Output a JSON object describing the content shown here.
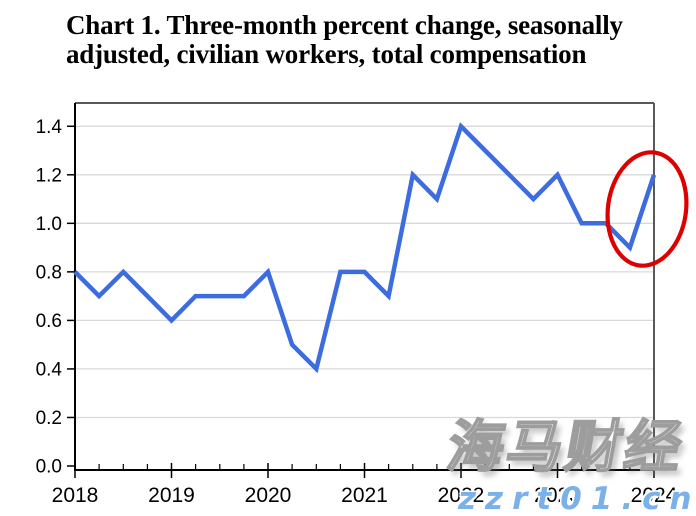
{
  "title": {
    "line1": "Chart 1. Three-month percent change, seasonally",
    "line2": "adjusted, civilian workers, total compensation"
  },
  "watermark": {
    "brand": "海马财经",
    "url": "zzrt01.cn",
    "url_color": "#7ab1e9"
  },
  "chart_data": {
    "type": "line",
    "title": "Chart 1. Three-month percent change, seasonally adjusted, civilian workers, total compensation",
    "xlabel": "",
    "ylabel": "",
    "categories": [
      "2018 Q1",
      "2018 Q2",
      "2018 Q3",
      "2018 Q4",
      "2019 Q1",
      "2019 Q2",
      "2019 Q3",
      "2019 Q4",
      "2020 Q1",
      "2020 Q2",
      "2020 Q3",
      "2020 Q4",
      "2021 Q1",
      "2021 Q2",
      "2021 Q3",
      "2021 Q4",
      "2022 Q1",
      "2022 Q2",
      "2022 Q3",
      "2022 Q4",
      "2023 Q1",
      "2023 Q2",
      "2023 Q3",
      "2023 Q4",
      "2024 Q1"
    ],
    "series": [
      {
        "name": "Total compensation, three-month percent change",
        "values": [
          0.8,
          0.7,
          0.8,
          0.7,
          0.6,
          0.7,
          0.7,
          0.7,
          0.8,
          0.5,
          0.4,
          0.8,
          0.8,
          0.7,
          1.2,
          1.1,
          1.4,
          1.3,
          1.2,
          1.1,
          1.2,
          1.0,
          1.0,
          0.9,
          1.2
        ]
      }
    ],
    "x_tick_labels": [
      "2018",
      "2019",
      "2020",
      "2021",
      "2022",
      "2023",
      "2024"
    ],
    "y_tick_labels": [
      "0.0",
      "0.2",
      "0.4",
      "0.6",
      "0.8",
      "1.0",
      "1.2",
      "1.4"
    ],
    "ylim": [
      0,
      1.5
    ],
    "grid": true,
    "legend_position": "none",
    "line_color": "#3d6ce0",
    "grid_color": "#d9d9d9",
    "border_color": "#595959",
    "axis_color": "#000000",
    "annotation": {
      "shape": "ellipse",
      "color": "#dd0000",
      "note": "circles the latest upturn from 0.9 to 1.2 at 2024 Q1"
    }
  }
}
